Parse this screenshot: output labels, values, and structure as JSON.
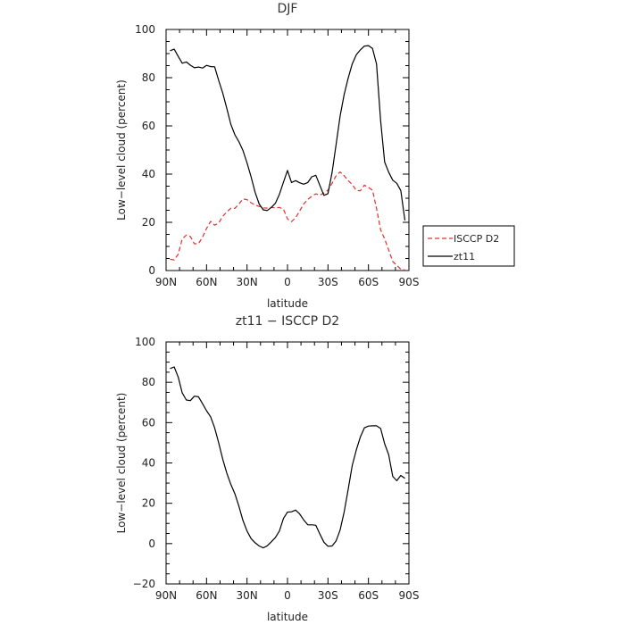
{
  "chart_data": [
    {
      "type": "line",
      "title": "DJF",
      "xlabel": "latitude",
      "ylabel": "Low−level cloud (percent)",
      "xlim": [
        90,
        -90
      ],
      "ylim": [
        0,
        100
      ],
      "x_tick_labels": [
        "90N",
        "60N",
        "30N",
        "0",
        "30S",
        "60S",
        "90S"
      ],
      "y_tick_labels": [
        "0",
        "20",
        "40",
        "60",
        "80",
        "100"
      ],
      "legend": {
        "placement": "right-bottom",
        "entries": [
          "ISCCP D2",
          "zt11"
        ]
      },
      "series": [
        {
          "name": "ISCCP D2",
          "color": "#e03030",
          "dash": "dashed",
          "x": [
            87,
            84,
            81,
            78,
            75,
            72,
            69,
            66,
            63,
            60,
            57,
            54,
            51,
            48,
            45,
            42,
            39,
            36,
            33,
            30,
            27,
            24,
            21,
            18,
            15,
            12,
            9,
            6,
            3,
            0,
            -3,
            -6,
            -9,
            -12,
            -15,
            -18,
            -21,
            -24,
            -27,
            -30,
            -33,
            -36,
            -39,
            -42,
            -45,
            -48,
            -51,
            -54,
            -57,
            -60,
            -63,
            -66,
            -69,
            -72,
            -75,
            -78,
            -81,
            -84,
            -87
          ],
          "values": [
            4.7,
            4.4,
            6.8,
            13.1,
            14.7,
            14.1,
            11.1,
            11.1,
            13.8,
            17.4,
            20.4,
            18.8,
            19.7,
            22.5,
            24.3,
            25.8,
            25.8,
            27.6,
            29.7,
            29.4,
            28.1,
            27.2,
            26.6,
            26.0,
            25.9,
            26.2,
            26.0,
            26.2,
            25.4,
            21.4,
            20.3,
            21.9,
            24.7,
            27.6,
            29.5,
            30.8,
            31.8,
            31.3,
            32.2,
            33.3,
            36.2,
            39.3,
            40.9,
            39.3,
            37.3,
            35.7,
            33.2,
            33.1,
            35.4,
            34.5,
            33.3,
            25.8,
            16.9,
            13.1,
            8.6,
            3.7,
            2.2,
            0.5,
            0.2
          ]
        },
        {
          "name": "zt11",
          "color": "#000000",
          "dash": "solid",
          "x": [
            87,
            84,
            81,
            78,
            75,
            72,
            69,
            66,
            63,
            60,
            57,
            54,
            51,
            48,
            45,
            42,
            39,
            36,
            33,
            30,
            27,
            24,
            21,
            18,
            15,
            12,
            9,
            6,
            3,
            0,
            -3,
            -6,
            -9,
            -12,
            -15,
            -18,
            -21,
            -24,
            -27,
            -30,
            -33,
            -36,
            -39,
            -42,
            -45,
            -48,
            -51,
            -54,
            -57,
            -60,
            -63,
            -66,
            -69,
            -72,
            -75,
            -78,
            -81,
            -84,
            -87
          ],
          "values": [
            91.2,
            91.8,
            88.8,
            86.0,
            86.5,
            85.2,
            84.1,
            84.4,
            84.0,
            85.1,
            84.6,
            84.5,
            78.9,
            73.6,
            67.3,
            60.7,
            56.3,
            53.4,
            49.8,
            44.6,
            38.9,
            32.5,
            27.6,
            25.2,
            24.9,
            26.2,
            27.9,
            31.6,
            36.7,
            41.5,
            36.5,
            37.3,
            36.4,
            35.8,
            36.5,
            38.9,
            39.5,
            35.3,
            31.2,
            31.9,
            40.6,
            52.2,
            64.0,
            73.1,
            79.9,
            85.7,
            89.5,
            91.5,
            93.1,
            93.3,
            92.1,
            85.7,
            62.2,
            45.0,
            40.8,
            37.5,
            36.2,
            33.2,
            20.8
          ]
        }
      ]
    },
    {
      "type": "line",
      "title": "zt11 − ISCCP D2",
      "xlabel": "latitude",
      "ylabel": "Low−level cloud (percent)",
      "xlim": [
        90,
        -90
      ],
      "ylim": [
        -20,
        100
      ],
      "x_tick_labels": [
        "90N",
        "60N",
        "30N",
        "0",
        "30S",
        "60S",
        "90S"
      ],
      "y_tick_labels": [
        "−20",
        "0",
        "20",
        "40",
        "60",
        "80",
        "100"
      ],
      "series": [
        {
          "color": "#000000",
          "dash": "solid",
          "x": [
            87,
            84,
            81,
            78,
            75,
            72,
            69,
            66,
            63,
            60,
            57,
            54,
            51,
            48,
            45,
            42,
            39,
            36,
            33,
            30,
            27,
            24,
            21,
            18,
            15,
            12,
            9,
            6,
            3,
            0,
            -3,
            -6,
            -9,
            -12,
            -15,
            -18,
            -21,
            -24,
            -27,
            -30,
            -33,
            -36,
            -39,
            -42,
            -45,
            -48,
            -51,
            -54,
            -57,
            -60,
            -63,
            -66,
            -69,
            -72,
            -75,
            -78,
            -81,
            -84,
            -87
          ],
          "values": [
            86.8,
            87.6,
            82.6,
            74.7,
            71.2,
            70.9,
            73.1,
            72.8,
            69.4,
            65.9,
            62.9,
            57.4,
            50.0,
            41.8,
            35.0,
            29.4,
            24.7,
            18.5,
            11.5,
            6.2,
            2.5,
            0.4,
            -1.2,
            -2.1,
            -1.1,
            0.9,
            3.0,
            6.2,
            12.5,
            15.6,
            15.8,
            16.6,
            14.7,
            11.8,
            9.3,
            9.3,
            9.1,
            4.7,
            0.7,
            -1.3,
            -1.2,
            1.3,
            6.7,
            15.8,
            27.0,
            38.7,
            46.5,
            52.9,
            57.4,
            58.3,
            58.4,
            58.4,
            57.1,
            49.5,
            44.1,
            33.3,
            31.2,
            33.8,
            32.4
          ]
        }
      ]
    }
  ]
}
